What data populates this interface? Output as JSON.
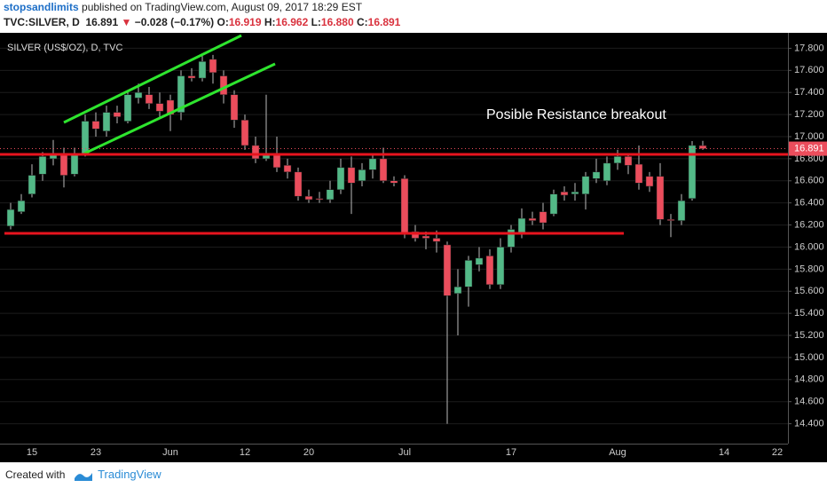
{
  "header": {
    "author": "stopsandlimits",
    "published": "published on TradingView.com, August 09, 2017 18:29 EST",
    "symbol": "TVC:SILVER, D",
    "last": "16.891",
    "change": "−0.028 (−0.17%)",
    "ohlc": [
      {
        "label": "O:",
        "value": "16.919"
      },
      {
        "label": "H:",
        "value": "16.962"
      },
      {
        "label": "L:",
        "value": "16.880"
      },
      {
        "label": "C:",
        "value": "16.891"
      }
    ]
  },
  "chart_data": {
    "type": "candlestick",
    "title": "SILVER (US$/OZ), D, TVC",
    "annotation": "Posible Resistance breakout",
    "up_color": "#53b987",
    "down_color": "#eb4d5c",
    "grid": true,
    "categories": [
      null,
      null,
      "15",
      null,
      null,
      null,
      null,
      null,
      "23",
      null,
      null,
      null,
      null,
      null,
      null,
      "Jun",
      null,
      null,
      null,
      null,
      null,
      null,
      "12",
      null,
      null,
      null,
      null,
      null,
      "20",
      null,
      null,
      null,
      null,
      null,
      null,
      null,
      null,
      "Jul",
      null,
      null,
      null,
      null,
      null,
      null,
      null,
      null,
      null,
      "17",
      null,
      null,
      null,
      null,
      null,
      null,
      null,
      null,
      null,
      "Aug",
      null,
      null,
      null,
      null,
      null,
      null,
      null,
      null,
      null,
      "14",
      null,
      null,
      null,
      null,
      "22",
      null
    ],
    "open": [
      16.19,
      16.32,
      16.48,
      16.66,
      16.8,
      16.85,
      16.66,
      16.84,
      17.14,
      17.05,
      17.22,
      17.14,
      17.35,
      17.38,
      17.3,
      17.33,
      17.22,
      17.55,
      17.53,
      17.7,
      17.55,
      17.38,
      17.15,
      16.92,
      16.8,
      16.85,
      16.74,
      16.68,
      16.46,
      16.44,
      16.43,
      16.52,
      16.72,
      16.6,
      16.7,
      16.8,
      16.6,
      16.62,
      16.14,
      16.1,
      16.08,
      16.02,
      15.58,
      15.64,
      15.84,
      15.92,
      15.66,
      16.0,
      16.12,
      16.26,
      16.32,
      16.3,
      16.5,
      16.48,
      16.48,
      16.62,
      16.6,
      16.76,
      16.82,
      16.75,
      16.64,
      16.64,
      16.25,
      16.24,
      16.44,
      16.919,
      null,
      null,
      null,
      null,
      null,
      null,
      null,
      null
    ],
    "high": [
      16.4,
      16.48,
      16.75,
      16.86,
      16.97,
      16.9,
      16.9,
      17.2,
      17.22,
      17.28,
      17.28,
      17.42,
      17.48,
      17.45,
      17.4,
      17.38,
      17.6,
      17.62,
      17.73,
      17.74,
      17.6,
      17.42,
      17.2,
      17.0,
      17.38,
      17.0,
      16.8,
      16.72,
      16.52,
      16.5,
      16.6,
      16.8,
      16.82,
      16.76,
      16.84,
      16.9,
      16.64,
      16.65,
      16.2,
      16.14,
      16.15,
      16.05,
      15.8,
      15.92,
      16.0,
      15.98,
      16.08,
      16.2,
      16.35,
      16.32,
      16.4,
      16.52,
      16.55,
      16.58,
      16.68,
      16.8,
      16.82,
      16.88,
      16.84,
      16.92,
      16.68,
      16.76,
      16.3,
      16.48,
      16.96,
      16.962,
      null,
      null,
      null,
      null,
      null,
      null,
      null,
      null
    ],
    "low": [
      16.16,
      16.3,
      16.45,
      16.6,
      16.74,
      16.54,
      16.64,
      16.82,
      17.0,
      17.0,
      17.12,
      17.12,
      17.3,
      17.25,
      17.18,
      17.05,
      17.15,
      17.5,
      17.5,
      17.48,
      17.3,
      17.08,
      16.88,
      16.76,
      16.78,
      16.68,
      16.62,
      16.42,
      16.4,
      16.4,
      16.4,
      16.48,
      16.3,
      16.55,
      16.62,
      16.58,
      16.55,
      16.08,
      16.05,
      15.98,
      15.95,
      14.4,
      15.2,
      15.46,
      15.78,
      15.62,
      15.62,
      15.95,
      16.08,
      16.2,
      16.16,
      16.28,
      16.42,
      16.42,
      16.34,
      16.58,
      16.56,
      16.7,
      16.66,
      16.52,
      16.5,
      16.2,
      16.09,
      16.2,
      16.42,
      16.88,
      null,
      null,
      null,
      null,
      null,
      null,
      null,
      null
    ],
    "close": [
      16.34,
      16.42,
      16.65,
      16.82,
      16.84,
      16.65,
      16.84,
      17.14,
      17.07,
      17.22,
      17.18,
      17.38,
      17.4,
      17.3,
      17.23,
      17.2,
      17.55,
      17.53,
      17.68,
      17.58,
      17.38,
      17.15,
      16.92,
      16.8,
      16.85,
      16.72,
      16.68,
      16.46,
      16.43,
      16.43,
      16.52,
      16.72,
      16.58,
      16.7,
      16.8,
      16.6,
      16.58,
      16.12,
      16.08,
      16.08,
      16.05,
      15.56,
      15.64,
      15.88,
      15.9,
      15.66,
      16.0,
      16.16,
      16.26,
      16.24,
      16.22,
      16.48,
      16.47,
      16.5,
      16.64,
      16.68,
      16.76,
      16.82,
      16.74,
      16.58,
      16.55,
      16.25,
      16.24,
      16.42,
      16.92,
      16.891,
      null,
      null,
      null,
      null,
      null,
      null,
      null,
      null
    ],
    "ylim": [
      14.22,
      17.94
    ],
    "yticks": [
      {
        "value": 14.4,
        "label": "14.400"
      },
      {
        "value": 14.6,
        "label": "14.600"
      },
      {
        "value": 14.8,
        "label": "14.800"
      },
      {
        "value": 15.0,
        "label": "15.000"
      },
      {
        "value": 15.2,
        "label": "15.200"
      },
      {
        "value": 15.4,
        "label": "15.400"
      },
      {
        "value": 15.6,
        "label": "15.600"
      },
      {
        "value": 15.8,
        "label": "15.800"
      },
      {
        "value": 16.0,
        "label": "16.000"
      },
      {
        "value": 16.2,
        "label": "16.200"
      },
      {
        "value": 16.4,
        "label": "16.400"
      },
      {
        "value": 16.6,
        "label": "16.600"
      },
      {
        "value": 16.8,
        "label": "16.800"
      },
      {
        "value": 17.0,
        "label": "17.000"
      },
      {
        "value": 17.2,
        "label": "17.200"
      },
      {
        "value": 17.4,
        "label": "17.400"
      },
      {
        "value": 17.6,
        "label": "17.600"
      },
      {
        "value": 17.8,
        "label": "17.800"
      }
    ]
  },
  "footer": {
    "created": "Created with",
    "brand": "TradingView"
  }
}
